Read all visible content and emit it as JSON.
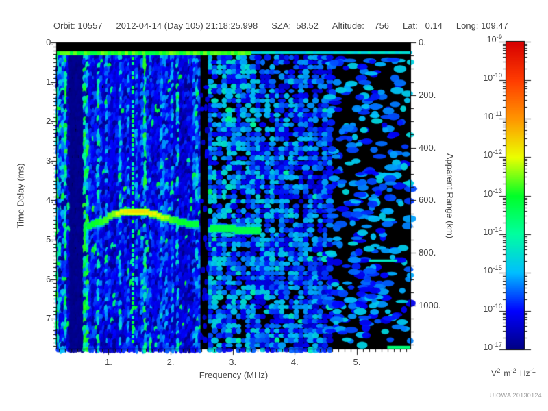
{
  "header": {
    "segments": [
      "Orbit: 10557",
      "2012-04-14 (Day 105) 21:18:25.998",
      "SZA:  58.52",
      "Altitude:    756",
      "Lat:   0.14",
      "Long: 109.47"
    ]
  },
  "axes": {
    "x": {
      "label": "Frequency (MHz)",
      "min": 0.156,
      "max": 5.872,
      "ticks": [
        1,
        2,
        3,
        4,
        5
      ],
      "minor_step": 0.1
    },
    "y_left": {
      "label": "Time Delay (ms)",
      "min": 0,
      "max": 7.78,
      "ticks": [
        0,
        1,
        2,
        3,
        4,
        5,
        6,
        7
      ],
      "minor_step": 0.1
    },
    "y_right": {
      "label": "Apparent Range (km)",
      "min": 0,
      "max": 1167,
      "ticks": [
        0,
        200,
        400,
        600,
        800,
        1000
      ],
      "minor_step": 50
    },
    "colorbar": {
      "exponents": [
        -9,
        -10,
        -11,
        -12,
        -13,
        -14,
        -15,
        -16,
        -17
      ],
      "unit_parts": [
        [
          "V",
          "2"
        ],
        [
          "m",
          "-2"
        ],
        [
          "Hz",
          "-1"
        ]
      ]
    }
  },
  "chart_data": {
    "type": "heatmap",
    "title": "",
    "x": {
      "label": "Frequency (MHz)",
      "min": 0.156,
      "max": 5.872
    },
    "y": {
      "label": "Time Delay (ms)",
      "min": 0,
      "max": 7.78
    },
    "y2": {
      "label": "Apparent Range (km)",
      "min": 0,
      "max": 1167
    },
    "z": {
      "unit": "V^2 m^-2 Hz^-1",
      "scale": "log10",
      "min": 1e-17,
      "max": 1e-09
    },
    "legend_position": "right-colorbar",
    "features": {
      "transmit_black_band_ms": [
        0,
        0.23
      ],
      "surface_stripe": {
        "delay_ms": [
          0.23,
          0.33
        ],
        "bright_until_mhz": 3.3
      },
      "plasma_line_mhz": 1.39,
      "dark_band_mhz": [
        0.36,
        0.57
      ],
      "absorption_band_mhz": [
        2.48,
        2.6
      ],
      "noise_blob_region_start_mhz": 4.55,
      "ionosphere_echo_trace": [
        [
          0.66,
          4.68
        ],
        [
          0.78,
          4.58
        ],
        [
          0.9,
          4.5
        ],
        [
          1.0,
          4.4
        ],
        [
          1.1,
          4.33
        ],
        [
          1.25,
          4.29
        ],
        [
          1.45,
          4.28
        ],
        [
          1.65,
          4.33
        ],
        [
          1.8,
          4.4
        ],
        [
          1.95,
          4.48
        ],
        [
          2.1,
          4.54
        ],
        [
          2.3,
          4.6
        ],
        [
          2.45,
          4.64
        ],
        [
          2.62,
          4.69
        ],
        [
          2.85,
          4.72
        ],
        [
          3.1,
          4.74
        ],
        [
          3.42,
          4.78
        ]
      ]
    }
  },
  "render": {
    "seed": 1337,
    "colormap_stops": [
      [
        0,
        0,
        0,
        130
      ],
      [
        0.125,
        0,
        0,
        255
      ],
      [
        0.25,
        0,
        190,
        255
      ],
      [
        0.375,
        0,
        255,
        160
      ],
      [
        0.5,
        0,
        255,
        40
      ],
      [
        0.625,
        235,
        255,
        0
      ],
      [
        0.75,
        255,
        150,
        0
      ],
      [
        0.875,
        255,
        60,
        0
      ],
      [
        1,
        215,
        0,
        0
      ]
    ],
    "trace": {
      "base_t": 0.47,
      "peak_t": 0.63,
      "peak_f": 1.45,
      "sigma": 0.38
    },
    "blob_count": 380,
    "extra_marks": [
      {
        "f0": 5.19,
        "f1": 5.65,
        "ms0": 5.5,
        "ms1": 5.56,
        "t": 0.33
      },
      {
        "f0": 5.49,
        "f1": 5.87,
        "ms0": 7.69,
        "ms1": 7.77,
        "t": 0.42
      },
      {
        "f0": 0.167,
        "f1": 0.23,
        "ms0": 1.63,
        "ms1": 1.72,
        "t": 0.5
      },
      {
        "f0": 0.167,
        "f1": 0.22,
        "ms0": 5.56,
        "ms1": 5.65,
        "t": 0.48
      }
    ]
  },
  "footer": {
    "credit": "UIOWA 20130124"
  }
}
